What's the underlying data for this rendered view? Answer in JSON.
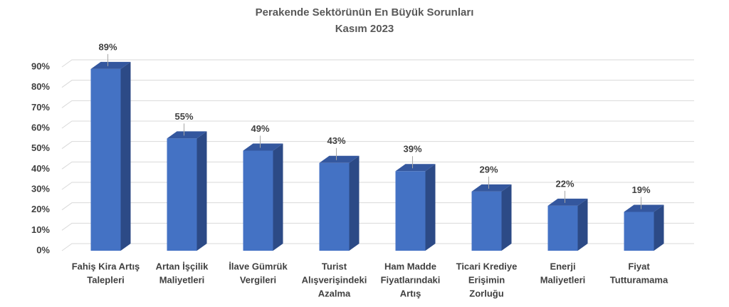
{
  "chart_data": {
    "type": "bar3d",
    "title": "Perakende Sektörünün En Büyük Sorunları",
    "subtitle": "Kasım 2023",
    "categories": [
      [
        "Fahiş Kira Artış",
        "Talepleri"
      ],
      [
        "Artan İşçilik",
        "Maliyetleri"
      ],
      [
        "İlave Gümrük",
        "Vergileri"
      ],
      [
        "Turist",
        "Alışverişindeki",
        "Azalma"
      ],
      [
        "Ham Madde",
        "Fiyatlarındaki",
        "Artış"
      ],
      [
        "Ticari Krediye",
        "Erişimin",
        "Zorluğu"
      ],
      [
        "Enerji",
        "Maliyetleri"
      ],
      [
        "Fiyat",
        "Tutturamama"
      ]
    ],
    "values": [
      89,
      55,
      49,
      43,
      39,
      29,
      22,
      19
    ],
    "value_labels": [
      "89%",
      "55%",
      "49%",
      "43%",
      "39%",
      "29%",
      "22%",
      "19%"
    ],
    "color": "#4472c4",
    "ylim": [
      0,
      90
    ],
    "yticks": [
      {
        "value": 0,
        "label": "0%"
      },
      {
        "value": 10,
        "label": "10%"
      },
      {
        "value": 20,
        "label": "20%"
      },
      {
        "value": 30,
        "label": "30%"
      },
      {
        "value": 40,
        "label": "40%"
      },
      {
        "value": 50,
        "label": "50%"
      },
      {
        "value": 60,
        "label": "60%"
      },
      {
        "value": 70,
        "label": "70%"
      },
      {
        "value": 80,
        "label": "80%"
      },
      {
        "value": 90,
        "label": "90%"
      }
    ],
    "grid": true
  }
}
